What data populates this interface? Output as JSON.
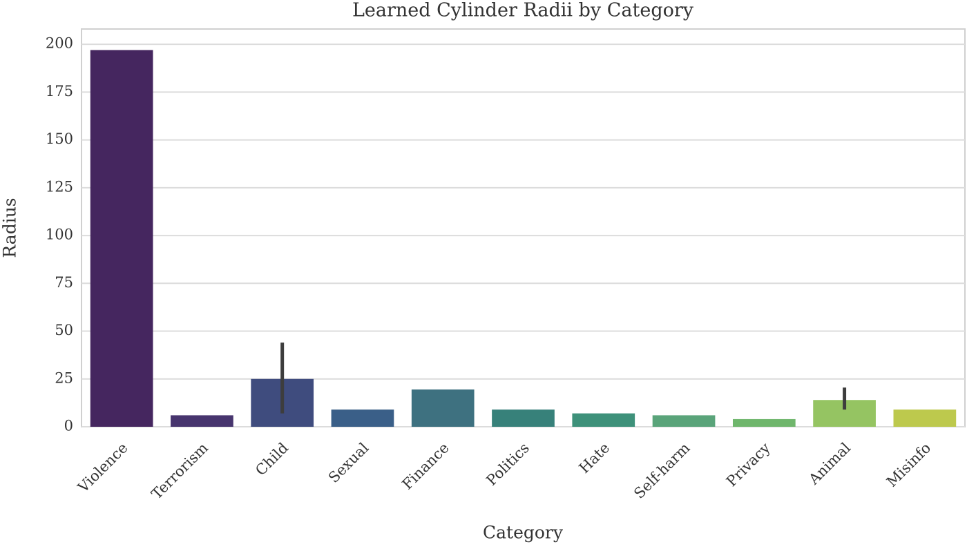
{
  "chart_data": {
    "type": "bar",
    "title": "Learned Cylinder Radii by Category",
    "x_label": "Category",
    "y_label": "Radius",
    "categories": [
      "Violence",
      "Terrorism",
      "Child",
      "Sexual",
      "Finance",
      "Politics",
      "Hate",
      "Self-harm",
      "Privacy",
      "Animal",
      "Misinfo"
    ],
    "values": [
      197,
      6,
      25,
      9,
      19.5,
      9,
      7,
      6,
      4,
      14,
      9
    ],
    "ci": [
      null,
      null,
      [
        7,
        44
      ],
      null,
      null,
      null,
      null,
      null,
      null,
      [
        9,
        20.5
      ],
      null
    ],
    "colors": [
      "#45265f",
      "#47356e",
      "#3f4c7e",
      "#3a5f88",
      "#3e7180",
      "#37817a",
      "#3e917a",
      "#5aa47a",
      "#6fb66c",
      "#95c462",
      "#bdc94d"
    ],
    "ylim": [
      0,
      208
    ],
    "yticks": [
      0,
      25,
      50,
      75,
      100,
      125,
      150,
      175,
      200
    ],
    "grid": true
  }
}
